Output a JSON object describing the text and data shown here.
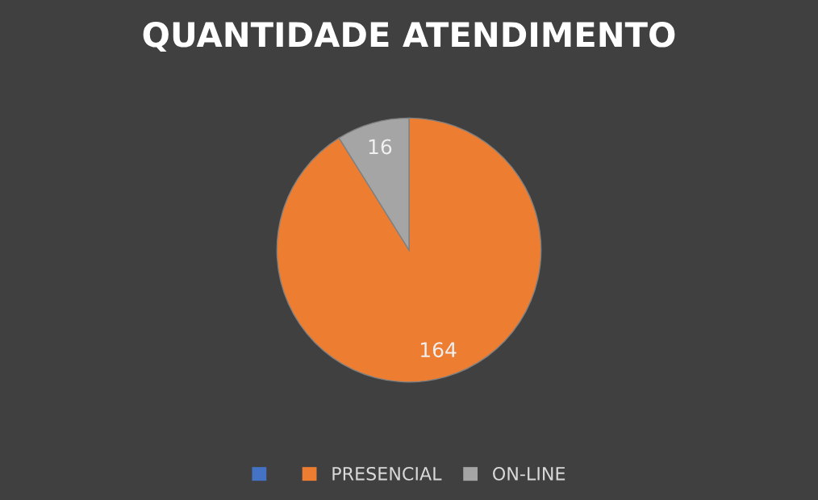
{
  "chart_data": {
    "type": "pie",
    "title": "QUANTIDADE ATENDIMENTO",
    "categories": [
      null,
      "PRESENCIAL",
      "ON-LINE"
    ],
    "values": [
      0,
      164,
      16
    ],
    "value_labels": [
      null,
      "164",
      "16"
    ],
    "colors": [
      "#4472c4",
      "#ed7d31",
      "#a5a5a5"
    ],
    "legend": "bottom"
  }
}
